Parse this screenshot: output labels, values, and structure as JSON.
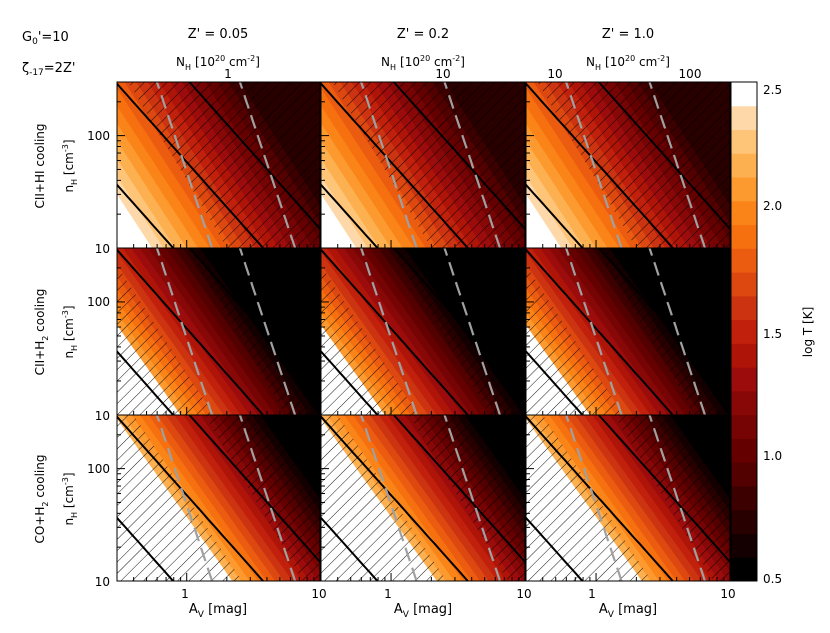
{
  "chart_data": {
    "type": "heatmap",
    "params_label": {
      "g0": "G",
      "g0_sub": "0",
      "g0_rest": "'=10",
      "zeta": "ζ",
      "zeta_sub": "-17",
      "zeta_rest": "=2Z'"
    },
    "columns": [
      {
        "title": "Z' = 0.05",
        "nh_label": "N",
        "nh_sub": "H",
        "nh_unit": "[10",
        "nh_exp": "20",
        "nh_unit2": " cm",
        "nh_exp2": "-2",
        "nh_close": "]",
        "nh_ticks": [
          "1"
        ],
        "z": 0.05
      },
      {
        "title": "Z' = 0.2",
        "nh_label": "N",
        "nh_sub": "H",
        "nh_unit": "[10",
        "nh_exp": "20",
        "nh_unit2": " cm",
        "nh_exp2": "-2",
        "nh_close": "]",
        "nh_ticks": [
          "10"
        ],
        "z": 0.2
      },
      {
        "title": "Z' = 1.0",
        "nh_label": "N",
        "nh_sub": "H",
        "nh_unit": "[10",
        "nh_exp": "20",
        "nh_unit2": " cm",
        "nh_exp2": "-2",
        "nh_close": "]",
        "nh_ticks": [
          "10",
          "100"
        ],
        "z": 1.0
      }
    ],
    "rows": [
      {
        "label_main": "CII+HI cooling",
        "label_sub": "",
        "ylabel": "n",
        "ylabel_sub": "H",
        "ylabel_unit": " [cm",
        "ylabel_exp": "-3",
        "ylabel_close": "]"
      },
      {
        "label_main": "CII+H",
        "label_sub": "2",
        "label_rest": " cooling",
        "ylabel": "n",
        "ylabel_sub": "H",
        "ylabel_unit": " [cm",
        "ylabel_exp": "-3",
        "ylabel_close": "]"
      },
      {
        "label_main": "CO+H",
        "label_sub": "2",
        "label_rest": " cooling",
        "ylabel": "n",
        "ylabel_sub": "H",
        "ylabel_unit": " [cm",
        "ylabel_exp": "-3",
        "ylabel_close": "]"
      }
    ],
    "xlabel": "A",
    "xlabel_sub": "V",
    "xlabel_unit": " [mag]",
    "xlim": [
      0.3,
      10
    ],
    "xticks": [
      "1",
      "10"
    ],
    "xscale": "log",
    "ylim": [
      10,
      300
    ],
    "yticks": [
      "10",
      "100"
    ],
    "yscale": "log",
    "colorbar": {
      "label": "log T [K]",
      "range": [
        0.5,
        2.5
      ],
      "ticks": [
        "0.5",
        "1.0",
        "1.5",
        "2.0",
        "2.5"
      ],
      "colors": [
        "#000000",
        "#140000",
        "#280000",
        "#3c0000",
        "#520000",
        "#640000",
        "#760404",
        "#880808",
        "#9c0c0c",
        "#ae1408",
        "#c0200c",
        "#cc3310",
        "#dc4810",
        "#ec5c10",
        "#f67010",
        "#fa8418",
        "#fc9a30",
        "#fdb050",
        "#fec478",
        "#fed8a8",
        "#ffffff"
      ]
    },
    "curves": {
      "black_solid": "contours of constant N_H",
      "gray_dashed": "contours of constant A_V"
    }
  }
}
